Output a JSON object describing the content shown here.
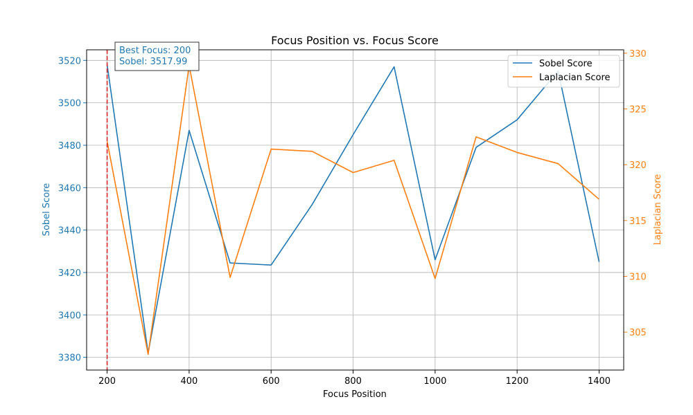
{
  "chart_data": {
    "type": "line",
    "title": "Focus Position vs. Focus Score",
    "xlabel": "Focus Position",
    "ylabel_left": "Sobel Score",
    "ylabel_right": "Laplacian Score",
    "xlim": [
      150,
      1460
    ],
    "ylim_left": [
      3374,
      3525
    ],
    "ylim_right": [
      301.6,
      330.3
    ],
    "x_ticks": [
      200,
      400,
      600,
      800,
      1000,
      1200,
      1400
    ],
    "y_left_ticks": [
      3380,
      3400,
      3420,
      3440,
      3460,
      3480,
      3500,
      3520
    ],
    "y_right_ticks": [
      305,
      310,
      315,
      320,
      325,
      330
    ],
    "grid": true,
    "legend_position": "top-right",
    "x": [
      200,
      300,
      400,
      500,
      600,
      700,
      800,
      900,
      1000,
      1100,
      1200,
      1300,
      1400
    ],
    "series": [
      {
        "name": "Sobel Score",
        "axis": "left",
        "color": "#1f77b4",
        "values": [
          3517.99,
          3382,
          3487,
          3424.5,
          3423.5,
          3452,
          3485,
          3517,
          3426,
          3479,
          3492,
          3515,
          3425
        ]
      },
      {
        "name": "Laplacian Score",
        "axis": "right",
        "color": "#ff7f0e",
        "values": [
          322.1,
          303.0,
          328.9,
          309.9,
          321.4,
          321.2,
          319.3,
          320.4,
          309.8,
          322.5,
          321.1,
          320.1,
          316.9
        ]
      }
    ],
    "best_focus_line": {
      "x": 200,
      "color": "#d62728"
    },
    "annotation": {
      "line1": "Best Focus: 200",
      "line2": "Sobel: 3517.99",
      "color": "#1f77b4"
    }
  }
}
